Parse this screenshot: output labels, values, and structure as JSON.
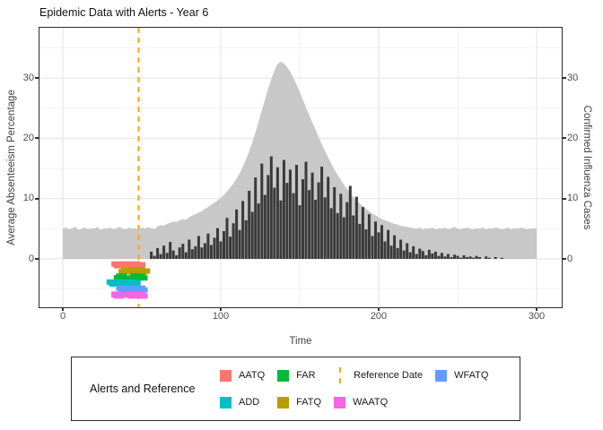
{
  "title": "Epidemic Data with Alerts - Year 6",
  "colors": {
    "area_fill": "#C8C8C8",
    "bar_fill": "#3A3A3A",
    "reference_line": "#FFA500",
    "grid_major": "#E6E6E6",
    "grid_minor": "#F2F2F2",
    "panel_border": "#2b2b2b",
    "tick_text": "#4d4d4d"
  },
  "legend": {
    "title": "Alerts and Reference",
    "items": [
      {
        "label": "AATQ",
        "color": "#F8766D",
        "key": "square"
      },
      {
        "label": "ADD",
        "color": "#00BFC4",
        "key": "square"
      },
      {
        "label": "FAR",
        "color": "#00BA38",
        "key": "square"
      },
      {
        "label": "FATQ",
        "color": "#B79F00",
        "key": "square"
      },
      {
        "label": "Reference Date",
        "color": "#FFA500",
        "key": "dashed-line"
      },
      {
        "label": "WAATQ",
        "color": "#F564E3",
        "key": "square"
      },
      {
        "label": "WFATQ",
        "color": "#619CFF",
        "key": "square"
      }
    ]
  },
  "chart_data": {
    "type": "composite",
    "title": "Epidemic Data with Alerts - Year 6",
    "x": {
      "label": "Time",
      "range": [
        0,
        300
      ],
      "ticks": [
        0,
        100,
        200,
        300
      ],
      "minor_ticks": [
        50,
        150,
        250
      ],
      "step": 2
    },
    "y_left": {
      "label": "Average Absenteeism Percentage",
      "ticks": [
        0,
        10,
        20,
        30
      ],
      "minor_ticks": [
        -5,
        5,
        15,
        25,
        35
      ],
      "range": [
        -8,
        38
      ]
    },
    "y_right": {
      "label": "Confirmed Influenza Cases",
      "ticks": [
        0,
        10,
        20,
        30
      ]
    },
    "series": [
      {
        "name": "Average Absenteeism Percentage",
        "type": "area",
        "color": "#C8C8C8",
        "values": [
          5.0,
          5.2,
          4.9,
          5.1,
          5.3,
          4.8,
          5.0,
          5.2,
          4.9,
          5.1,
          5.0,
          5.3,
          4.8,
          5.1,
          5.0,
          5.2,
          4.9,
          5.1,
          5.3,
          5.0,
          4.9,
          5.2,
          5.0,
          5.1,
          4.8,
          5.2,
          5.0,
          5.3,
          5.1,
          4.9,
          5.4,
          5.6,
          5.5,
          5.8,
          6.0,
          6.2,
          6.1,
          6.4,
          6.6,
          6.5,
          6.9,
          7.2,
          7.4,
          7.7,
          7.9,
          8.3,
          8.6,
          9.0,
          9.3,
          9.7,
          10.1,
          10.6,
          11.2,
          11.8,
          12.5,
          13.3,
          14.2,
          15.3,
          16.5,
          17.8,
          19.3,
          21.0,
          22.8,
          24.6,
          26.4,
          28.2,
          29.8,
          31.2,
          32.3,
          32.7,
          32.4,
          31.8,
          31.0,
          30.0,
          28.9,
          27.7,
          26.4,
          25.1,
          23.8,
          22.6,
          21.4,
          20.2,
          19.0,
          17.9,
          16.8,
          15.8,
          14.8,
          13.9,
          13.1,
          12.3,
          11.6,
          10.9,
          10.3,
          9.7,
          9.2,
          8.7,
          8.3,
          7.9,
          7.5,
          7.2,
          6.9,
          6.6,
          6.4,
          6.2,
          6.0,
          5.8,
          5.7,
          5.5,
          5.4,
          5.3,
          5.2,
          5.1,
          5.0,
          5.2,
          4.9,
          5.1,
          5.0,
          5.2,
          4.9,
          5.1,
          5.0,
          5.2,
          4.9,
          5.1,
          5.3,
          5.0,
          4.9,
          5.1,
          5.2,
          5.0,
          4.9,
          5.1,
          5.0,
          5.2,
          4.9,
          5.1,
          5.0,
          5.2,
          5.1,
          4.9,
          5.0,
          5.2,
          4.9,
          5.1,
          5.0,
          5.2,
          5.1,
          4.9,
          5.0,
          5.1,
          5.0
        ]
      },
      {
        "name": "Confirmed Influenza Cases",
        "type": "bar",
        "color": "#3A3A3A",
        "values": [
          0,
          0,
          0,
          0,
          0,
          0,
          0,
          0,
          0,
          0,
          0,
          0,
          0,
          0,
          0,
          0,
          0,
          0,
          0,
          0,
          0,
          0,
          0,
          0,
          0,
          0,
          0,
          0,
          1.2,
          0.5,
          1.8,
          0.8,
          2.2,
          1.0,
          2.8,
          1.4,
          0.6,
          1.9,
          2.5,
          1.1,
          3.2,
          1.6,
          2.1,
          3.8,
          1.9,
          2.6,
          4.2,
          2.3,
          3.5,
          5.1,
          2.9,
          4.6,
          6.8,
          3.7,
          5.9,
          8.2,
          4.8,
          9.6,
          6.4,
          11.3,
          7.8,
          13.5,
          9.2,
          15.8,
          10.6,
          13.9,
          17.0,
          11.8,
          15.2,
          9.7,
          16.4,
          12.6,
          14.8,
          10.9,
          15.6,
          8.9,
          13.2,
          16.1,
          11.4,
          14.3,
          9.8,
          12.7,
          15.3,
          10.2,
          13.6,
          8.4,
          11.9,
          7.6,
          10.8,
          6.9,
          9.4,
          12.1,
          7.2,
          10.3,
          5.8,
          8.6,
          4.9,
          7.4,
          3.8,
          6.2,
          4.4,
          5.6,
          2.9,
          4.8,
          2.2,
          3.9,
          1.8,
          3.2,
          1.4,
          2.6,
          1.1,
          2.1,
          0.8,
          1.7,
          1.3,
          0.6,
          1.5,
          0.9,
          1.2,
          0.5,
          1.0,
          0.4,
          0.8,
          0.3,
          0.7,
          0.5,
          0.2,
          0.6,
          0.3,
          0.4,
          0.2,
          0.5,
          0.3,
          0,
          0.4,
          0.2,
          0,
          0.3,
          0,
          0.2,
          0,
          0,
          0,
          0,
          0,
          0,
          0,
          0,
          0,
          0,
          0
        ]
      }
    ],
    "alerts": [
      {
        "name": "AATQ",
        "color": "#F8766D",
        "row": -1,
        "x": [
          33,
          34,
          35,
          36,
          37,
          38,
          39,
          40,
          41,
          42,
          43,
          44,
          45,
          46,
          47,
          48,
          49,
          50
        ]
      },
      {
        "name": "FATQ",
        "color": "#B79F00",
        "row": -2,
        "x": [
          37,
          38,
          39,
          40,
          41,
          42,
          43,
          44,
          45,
          46,
          47,
          48,
          49,
          50,
          51,
          52,
          53
        ]
      },
      {
        "name": "FAR",
        "color": "#00BA38",
        "row": -3,
        "x": [
          34,
          35,
          36,
          37,
          38,
          39,
          40,
          43,
          44,
          45,
          46,
          47,
          48,
          49,
          50,
          51,
          52
        ]
      },
      {
        "name": "ADD",
        "color": "#00BFC4",
        "row": -4,
        "x": [
          30,
          31,
          32,
          33,
          34,
          35,
          36,
          37,
          38,
          39,
          40,
          41,
          42,
          43,
          44,
          45,
          46,
          47
        ]
      },
      {
        "name": "WFATQ",
        "color": "#619CFF",
        "row": -5,
        "x": [
          36,
          37,
          38,
          39,
          40,
          41,
          42,
          43,
          44,
          45,
          46,
          47,
          48,
          49,
          50,
          51,
          52
        ]
      },
      {
        "name": "WAATQ",
        "color": "#F564E3",
        "row": -6,
        "x": [
          32,
          33,
          34,
          35,
          36,
          37,
          38,
          41,
          42,
          43,
          44,
          45,
          46,
          47,
          48,
          49,
          50,
          51,
          52
        ]
      }
    ],
    "reference_date": {
      "x": 48,
      "color": "#FFA500",
      "style": "dashed",
      "label": "Reference Date"
    }
  }
}
